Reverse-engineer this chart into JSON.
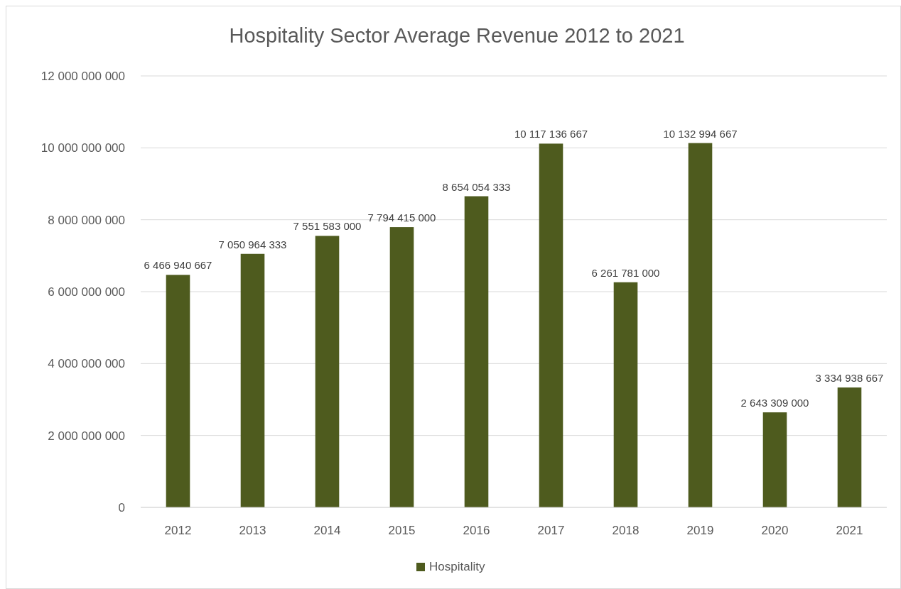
{
  "chart_data": {
    "type": "bar",
    "title": "Hospitality Sector Average Revenue 2012 to 2021",
    "categories": [
      "2012",
      "2013",
      "2014",
      "2015",
      "2016",
      "2017",
      "2018",
      "2019",
      "2020",
      "2021"
    ],
    "series": [
      {
        "name": "Hospitality",
        "color": "#4e5b1e",
        "values": [
          6466940667,
          7050964333,
          7551583000,
          7794415000,
          8654054333,
          10117136667,
          6261781000,
          10132994667,
          2643309000,
          3334938667
        ]
      }
    ],
    "ylim": [
      0,
      12000000000
    ],
    "yticks": [
      {
        "value": 0,
        "label": "0"
      },
      {
        "value": 2000000000,
        "label": "2 000 000 000"
      },
      {
        "value": 4000000000,
        "label": "4 000 000 000"
      },
      {
        "value": 6000000000,
        "label": "6 000 000 000"
      },
      {
        "value": 8000000000,
        "label": "8 000 000 000"
      },
      {
        "value": 10000000000,
        "label": "10 000 000 000"
      },
      {
        "value": 12000000000,
        "label": "12 000 000 000"
      }
    ],
    "grid": "y",
    "legend": "bottom",
    "data_labels": true
  }
}
